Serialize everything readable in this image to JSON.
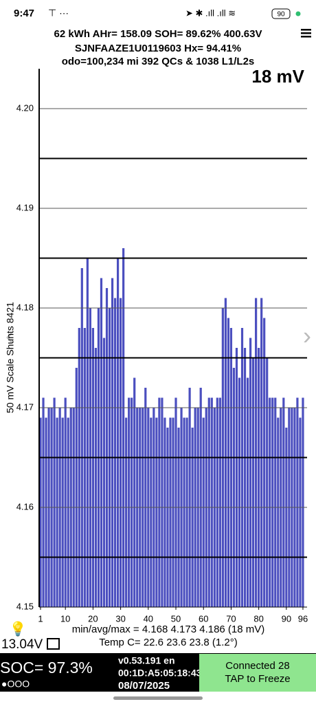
{
  "status_bar": {
    "time": "9:47",
    "battery": "90"
  },
  "header": {
    "line1": "62 kWh  AHr= 158.09  SOH= 89.62%   400.63V",
    "line2": "SJNFAAZE1U0119603   Hx= 94.41%",
    "line3": "odo=100,234 mi 392 QCs & 1038 L1/L2s",
    "spread": "18 mV"
  },
  "chart_data": {
    "type": "bar",
    "ylabel": "50 mV Scale Shunts 8421",
    "color": "#4b4fbf",
    "x": [
      1,
      2,
      3,
      4,
      5,
      6,
      7,
      8,
      9,
      10,
      11,
      12,
      13,
      14,
      15,
      16,
      17,
      18,
      19,
      20,
      21,
      22,
      23,
      24,
      25,
      26,
      27,
      28,
      29,
      30,
      31,
      32,
      33,
      34,
      35,
      36,
      37,
      38,
      39,
      40,
      41,
      42,
      43,
      44,
      45,
      46,
      47,
      48,
      49,
      50,
      51,
      52,
      53,
      54,
      55,
      56,
      57,
      58,
      59,
      60,
      61,
      62,
      63,
      64,
      65,
      66,
      67,
      68,
      69,
      70,
      71,
      72,
      73,
      74,
      75,
      76,
      77,
      78,
      79,
      80,
      81,
      82,
      83,
      84,
      85,
      86,
      87,
      88,
      89,
      90,
      91,
      92,
      93,
      94,
      95,
      96
    ],
    "values": [
      4.169,
      4.171,
      4.169,
      4.17,
      4.17,
      4.171,
      4.169,
      4.17,
      4.169,
      4.171,
      4.169,
      4.17,
      4.17,
      4.174,
      4.178,
      4.184,
      4.178,
      4.185,
      4.18,
      4.178,
      4.176,
      4.18,
      4.183,
      4.177,
      4.182,
      4.18,
      4.183,
      4.181,
      4.185,
      4.181,
      4.186,
      4.169,
      4.171,
      4.171,
      4.173,
      4.17,
      4.17,
      4.17,
      4.172,
      4.17,
      4.169,
      4.17,
      4.169,
      4.171,
      4.171,
      4.169,
      4.168,
      4.169,
      4.169,
      4.171,
      4.168,
      4.17,
      4.169,
      4.169,
      4.172,
      4.168,
      4.17,
      4.17,
      4.172,
      4.169,
      4.17,
      4.171,
      4.171,
      4.17,
      4.171,
      4.171,
      4.18,
      4.181,
      4.179,
      4.178,
      4.174,
      4.176,
      4.173,
      4.178,
      4.176,
      4.173,
      4.177,
      4.175,
      4.181,
      4.176,
      4.181,
      4.179,
      4.175,
      4.171,
      4.171,
      4.171,
      4.169,
      4.17,
      4.171,
      4.168,
      4.17,
      4.17,
      4.17,
      4.171,
      4.169,
      4.171
    ],
    "xlim": [
      0.5,
      97.5
    ],
    "xticks": [
      1,
      10,
      20,
      30,
      40,
      50,
      60,
      70,
      80,
      90,
      96
    ],
    "ylim": [
      4.15,
      4.204
    ],
    "yticks": [
      4.15,
      4.16,
      4.17,
      4.18,
      4.19,
      {
        "value": 4.2,
        "label": "4.20"
      }
    ],
    "yminor": [
      4.155,
      4.165,
      4.175,
      4.185,
      4.195
    ],
    "grid": true
  },
  "stats": {
    "minmax": "min/avg/max = 4.168 4.173 4.186  (18 mV)",
    "temp": "Temp C= 22.6  23.6  23.8  (1.2°)",
    "voltage": "13.04V"
  },
  "footer": {
    "soc": "SOC= 97.3%",
    "dots": "●OOO",
    "version": "v0.53.191 en",
    "mac": "00:1D:A5:05:18:43",
    "date": "08/07/2025",
    "connected": "Connected 28",
    "tap": "TAP to Freeze"
  }
}
